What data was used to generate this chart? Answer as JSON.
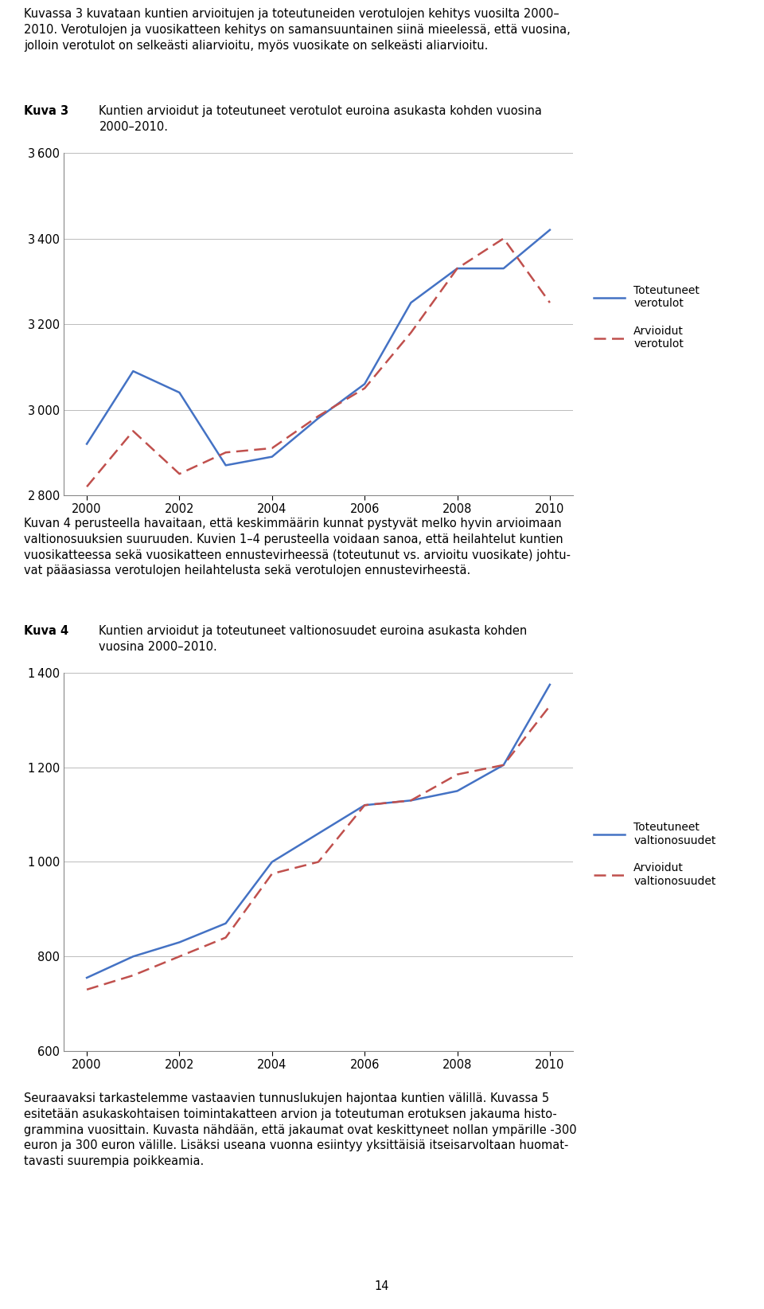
{
  "chart1": {
    "years": [
      2000,
      2001,
      2002,
      2003,
      2004,
      2005,
      2006,
      2007,
      2008,
      2009,
      2010
    ],
    "toteutuneet": [
      2920,
      3090,
      3040,
      2870,
      2890,
      2980,
      3060,
      3250,
      3330,
      3330,
      3420
    ],
    "arvioidut": [
      2820,
      2950,
      2850,
      2900,
      2910,
      2985,
      3050,
      3180,
      3330,
      3400,
      3250
    ],
    "ylim": [
      2800,
      3600
    ],
    "yticks": [
      2800,
      3000,
      3200,
      3400,
      3600
    ],
    "legend_line1": "Toteutuneet\nverotulot",
    "legend_line2": "Arvioidut\nverotulot",
    "line_color_solid": "#4472C4",
    "line_color_dashed": "#C0504D"
  },
  "chart2": {
    "years": [
      2000,
      2001,
      2002,
      2003,
      2004,
      2005,
      2006,
      2007,
      2008,
      2009,
      2010
    ],
    "toteutuneet": [
      755,
      800,
      830,
      870,
      1000,
      1060,
      1120,
      1130,
      1150,
      1205,
      1375
    ],
    "arvioidut": [
      730,
      760,
      800,
      840,
      975,
      1000,
      1120,
      1130,
      1185,
      1205,
      1330
    ],
    "ylim": [
      600,
      1400
    ],
    "yticks": [
      600,
      800,
      1000,
      1200,
      1400
    ],
    "legend_line1": "Toteutuneet\nvaltionosuudet",
    "legend_line2": "Arvioidut\nvaltionosuudet",
    "line_color_solid": "#4472C4",
    "line_color_dashed": "#C0504D"
  },
  "xtick_years": [
    2000,
    2002,
    2004,
    2006,
    2008,
    2010
  ],
  "background_color": "#ffffff",
  "body_fontsize": 10.5,
  "axis_fontsize": 10.5,
  "legend_fontsize": 10,
  "kuva3_bold": "Kuva 3",
  "kuva3_title": "Kuntien arvioidut ja toteutuneet verotulot euroina asukasta kohden vuosina\n2000–2010.",
  "kuva4_bold": "Kuva 4",
  "kuva4_title": "Kuntien arvioidut ja toteutuneet valtionosuudet euroina asukasta kohden\nvuosina 2000–2010.",
  "intro_text": "Kuvassa 3 kuvataan kuntien arvioitujen ja toteutuneiden verotulojen kehitys vuosilta 2000–\n2010. Verotulojen ja vuosikatteen kehitys on samansuuntainen siinä mieelessä, että vuosina,\njolloin verotulot on selkeästi aliarvioitu, myös vuosikate on selkeästi aliarvioitu.",
  "between_text": "Kuvan 4 perusteella havaitaan, että keskimmäärin kunnat pystyvät melko hyvin arvioimaan\nvaltionosuuksien suuruuden. Kuvien 1–4 perusteella voidaan sanoa, että heilahtelut kuntien\nvuosikatteessa sekä vuosikatteen ennustevirheessä (toteutunut vs. arvioitu vuosikate) johtu-\nvat pääasiassa verotulojen heilahtelusta sekä verotulojen ennustevirheestä.",
  "outro_text": "Seuraavaksi tarkastelemme vastaavien tunnuslukujen hajontaa kuntien välillä. Kuvassa 5\nesitetään asukaskohtaisen toimintakatteen arvion ja toteutuman erotuksen jakauma histo-\ngrammina vuosittain. Kuvasta nähdään, että jakaumat ovat keskittyneet nollan ympärille -300\neuron ja 300 euron välille. Lisäksi useana vuonna esiintyy yksittäisiä itseisarvoltaan huomat-\ntavasti suurempia poikkeamia.",
  "page_number": "14"
}
